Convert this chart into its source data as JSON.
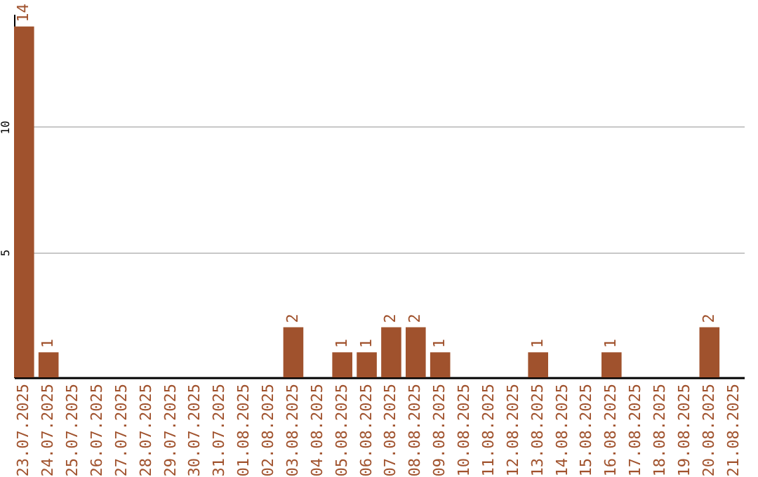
{
  "chart_data": {
    "type": "bar",
    "categories": [
      "23.07.2025",
      "24.07.2025",
      "25.07.2025",
      "26.07.2025",
      "27.07.2025",
      "28.07.2025",
      "29.07.2025",
      "30.07.2025",
      "31.07.2025",
      "01.08.2025",
      "02.08.2025",
      "03.08.2025",
      "04.08.2025",
      "05.08.2025",
      "06.08.2025",
      "07.08.2025",
      "08.08.2025",
      "09.08.2025",
      "10.08.2025",
      "11.08.2025",
      "12.08.2025",
      "13.08.2025",
      "14.08.2025",
      "15.08.2025",
      "16.08.2025",
      "17.08.2025",
      "18.08.2025",
      "19.08.2025",
      "20.08.2025",
      "21.08.2025"
    ],
    "values": [
      14,
      1,
      0,
      0,
      0,
      0,
      0,
      0,
      0,
      0,
      0,
      2,
      0,
      1,
      1,
      2,
      2,
      1,
      0,
      0,
      0,
      1,
      0,
      0,
      1,
      0,
      0,
      0,
      2,
      0
    ],
    "value_labels": [
      "14",
      "1",
      null,
      null,
      null,
      null,
      null,
      null,
      null,
      null,
      null,
      "2",
      null,
      "1",
      "1",
      "2",
      "2",
      "1",
      null,
      null,
      null,
      "1",
      null,
      null,
      "1",
      null,
      null,
      null,
      "2",
      null
    ],
    "color": "#a0522d",
    "ylim": [
      0,
      14.5
    ],
    "yticks": [
      5,
      10
    ],
    "grid": "y"
  }
}
